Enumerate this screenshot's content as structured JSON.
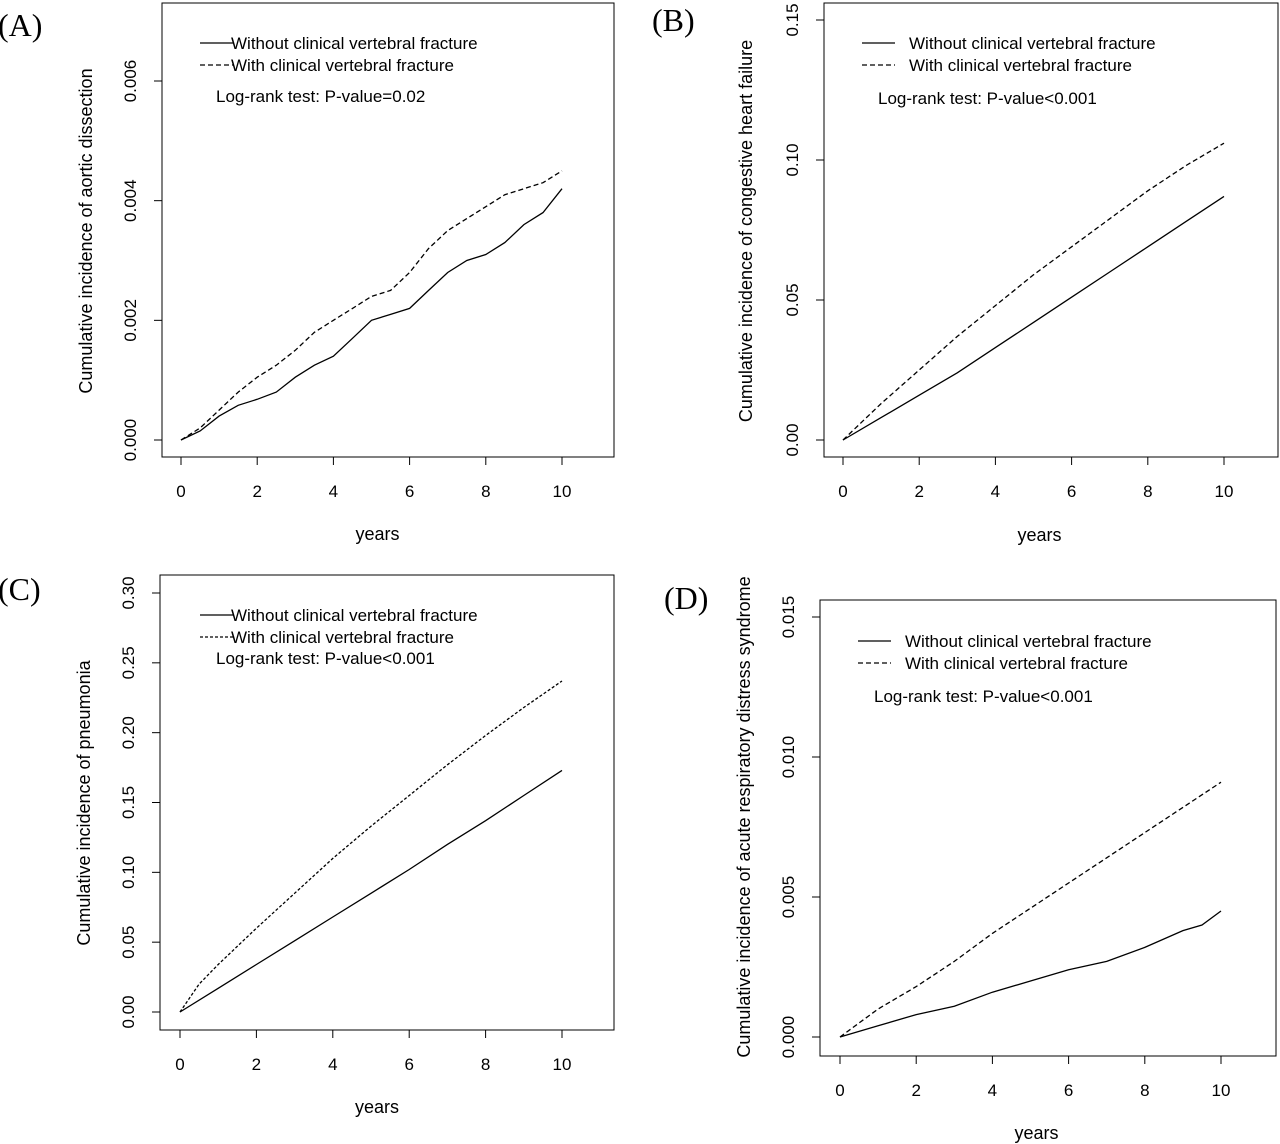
{
  "figure": {
    "background": "#ffffff",
    "line_color": "#000000"
  },
  "chart_data": [
    {
      "type": "line",
      "panel_label": "(A)",
      "xlabel": "years",
      "ylabel": "Cumulative incidence of aortic dissection",
      "xlim": [
        0,
        10
      ],
      "ylim": [
        0,
        0.006
      ],
      "xticks": [
        0,
        2,
        4,
        6,
        8,
        10
      ],
      "xtick_labels": [
        "0",
        "2",
        "4",
        "6",
        "8",
        "10"
      ],
      "yticks": [
        0,
        0.002,
        0.004,
        0.006
      ],
      "ytick_labels": [
        "0.000",
        "0.002",
        "0.004",
        "0.006"
      ],
      "grid": false,
      "legend_position": "top-left",
      "annotation": "Log-rank test: P-value=0.02",
      "series": [
        {
          "name": "Without clinical vertebral fracture",
          "line_style": "solid",
          "x": [
            0,
            0.5,
            1,
            1.5,
            2,
            2.5,
            3,
            3.5,
            4,
            4.5,
            5,
            5.5,
            6,
            6.5,
            7,
            7.5,
            8,
            8.5,
            9,
            9.5,
            10
          ],
          "y": [
            0,
            0.00015,
            0.0004,
            0.00058,
            0.00068,
            0.0008,
            0.00105,
            0.00125,
            0.0014,
            0.0017,
            0.002,
            0.0021,
            0.0022,
            0.0025,
            0.0028,
            0.003,
            0.0031,
            0.0033,
            0.0036,
            0.0038,
            0.0042
          ]
        },
        {
          "name": "With clinical vertebral fracture",
          "line_style": "dashed",
          "x": [
            0,
            0.5,
            1,
            1.5,
            2,
            2.5,
            3,
            3.5,
            4,
            4.5,
            5,
            5.5,
            6,
            6.5,
            7,
            7.5,
            8,
            8.5,
            9,
            9.5,
            10
          ],
          "y": [
            0,
            0.0002,
            0.0005,
            0.0008,
            0.00105,
            0.00125,
            0.0015,
            0.0018,
            0.002,
            0.0022,
            0.0024,
            0.0025,
            0.0028,
            0.0032,
            0.0035,
            0.0037,
            0.0039,
            0.0041,
            0.0042,
            0.0043,
            0.0045
          ]
        }
      ]
    },
    {
      "type": "line",
      "panel_label": "(B)",
      "xlabel": "years",
      "ylabel": "Cumulative incidence of congestive heart failure",
      "xlim": [
        0,
        10
      ],
      "ylim": [
        0,
        0.15
      ],
      "xticks": [
        0,
        2,
        4,
        6,
        8,
        10
      ],
      "xtick_labels": [
        "0",
        "2",
        "4",
        "6",
        "8",
        "10"
      ],
      "yticks": [
        0,
        0.05,
        0.1,
        0.15
      ],
      "ytick_labels": [
        "0.00",
        "0.05",
        "0.10",
        "0.15"
      ],
      "grid": false,
      "legend_position": "top-left",
      "annotation": "Log-rank test: P-value<0.001",
      "series": [
        {
          "name": "Without clinical vertebral fracture",
          "line_style": "solid",
          "x": [
            0,
            1,
            2,
            3,
            4,
            5,
            6,
            7,
            8,
            9,
            10
          ],
          "y": [
            0,
            0.008,
            0.016,
            0.024,
            0.033,
            0.042,
            0.051,
            0.06,
            0.069,
            0.078,
            0.087
          ]
        },
        {
          "name": "With clinical vertebral fracture",
          "line_style": "dashed",
          "x": [
            0,
            1,
            2,
            3,
            4,
            5,
            6,
            7,
            8,
            9,
            10
          ],
          "y": [
            0,
            0.013,
            0.025,
            0.037,
            0.048,
            0.059,
            0.069,
            0.079,
            0.089,
            0.098,
            0.106
          ]
        }
      ]
    },
    {
      "type": "line",
      "panel_label": "(C)",
      "xlabel": "years",
      "ylabel": "Cumulative incidence of pneumonia",
      "xlim": [
        0,
        10
      ],
      "ylim": [
        0,
        0.3
      ],
      "xticks": [
        0,
        2,
        4,
        6,
        8,
        10
      ],
      "xtick_labels": [
        "0",
        "2",
        "4",
        "6",
        "8",
        "10"
      ],
      "yticks": [
        0,
        0.05,
        0.1,
        0.15,
        0.2,
        0.25,
        0.3
      ],
      "ytick_labels": [
        "0.00",
        "0.05",
        "0.10",
        "0.15",
        "0.20",
        "0.25",
        "0.30"
      ],
      "grid": false,
      "legend_position": "top-left",
      "annotation": "Log-rank test: P-value<0.001",
      "series": [
        {
          "name": "Without clinical vertebral fracture",
          "line_style": "solid",
          "x": [
            0,
            1,
            2,
            3,
            4,
            5,
            6,
            7,
            8,
            9,
            10
          ],
          "y": [
            0,
            0.017,
            0.034,
            0.051,
            0.068,
            0.085,
            0.102,
            0.12,
            0.137,
            0.155,
            0.173
          ]
        },
        {
          "name": "With clinical vertebral fracture",
          "line_style": "dashed",
          "x": [
            0,
            0.5,
            1,
            2,
            3,
            4,
            5,
            6,
            7,
            8,
            9,
            10
          ],
          "y": [
            0,
            0.02,
            0.034,
            0.06,
            0.085,
            0.11,
            0.133,
            0.155,
            0.177,
            0.198,
            0.218,
            0.237
          ]
        }
      ]
    },
    {
      "type": "line",
      "panel_label": "(D)",
      "xlabel": "years",
      "ylabel": "Cumulative incidence of acute respiratory distress syndrome",
      "xlim": [
        0,
        10
      ],
      "ylim": [
        0,
        0.015
      ],
      "xticks": [
        0,
        2,
        4,
        6,
        8,
        10
      ],
      "xtick_labels": [
        "0",
        "2",
        "4",
        "6",
        "8",
        "10"
      ],
      "yticks": [
        0,
        0.005,
        0.01,
        0.015
      ],
      "ytick_labels": [
        "0.000",
        "0.005",
        "0.010",
        "0.015"
      ],
      "grid": false,
      "legend_position": "top-left",
      "annotation": "Log-rank test: P-value<0.001",
      "series": [
        {
          "name": "Without clinical vertebral fracture",
          "line_style": "solid",
          "x": [
            0,
            1,
            2,
            3,
            4,
            5,
            6,
            7,
            8,
            9,
            9.5,
            10
          ],
          "y": [
            0,
            0.0004,
            0.0008,
            0.0011,
            0.0016,
            0.002,
            0.0024,
            0.0027,
            0.0032,
            0.0038,
            0.004,
            0.0045
          ]
        },
        {
          "name": "With clinical vertebral fracture",
          "line_style": "dashed",
          "x": [
            0,
            1,
            2,
            3,
            4,
            5,
            6,
            7,
            8,
            9,
            10
          ],
          "y": [
            0,
            0.001,
            0.0018,
            0.0027,
            0.0037,
            0.0046,
            0.0055,
            0.0064,
            0.0073,
            0.0082,
            0.0091
          ]
        }
      ]
    }
  ]
}
